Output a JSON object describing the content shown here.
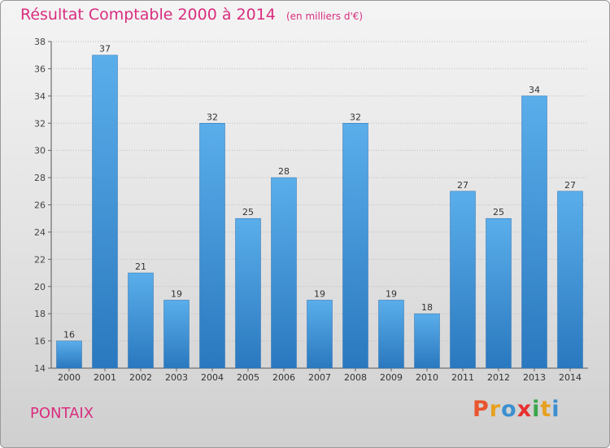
{
  "chart_data": {
    "type": "bar",
    "title": "Résultat Comptable 2000 à 2014",
    "unit": "(en milliers d'€)",
    "xlabel": "",
    "ylabel": "",
    "categories": [
      "2000",
      "2001",
      "2002",
      "2003",
      "2004",
      "2005",
      "2006",
      "2007",
      "2008",
      "2009",
      "2010",
      "2011",
      "2012",
      "2013",
      "2014"
    ],
    "values": [
      16,
      37,
      21,
      19,
      32,
      25,
      28,
      19,
      32,
      19,
      18,
      27,
      25,
      34,
      27
    ],
    "ylim": [
      14,
      38
    ],
    "yticks": [
      14,
      16,
      18,
      20,
      22,
      24,
      26,
      28,
      30,
      32,
      34,
      36,
      38
    ],
    "grid": true,
    "bar_color": "#3a8fd6"
  },
  "footer": {
    "city": "PONTAIX",
    "logo": "Proxiti"
  },
  "colors": {
    "title": "#d92d7f",
    "logo_letters": [
      "#e8552e",
      "#e8a020",
      "#3b8fd0",
      "#e83030",
      "#3aa64a",
      "#e8a020",
      "#3b8fd0"
    ]
  }
}
